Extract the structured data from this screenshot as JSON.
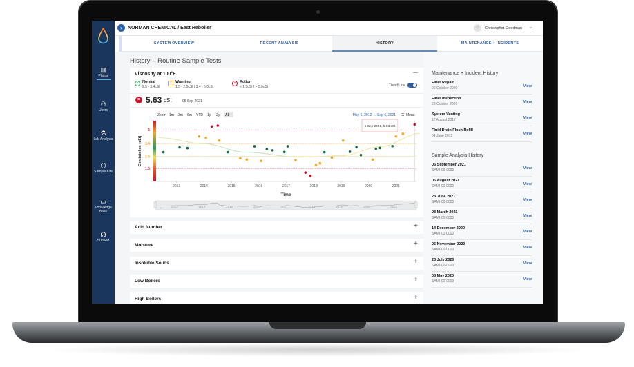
{
  "header": {
    "breadcrumb": "NORMAN CHEMICAL / East Reboiler",
    "user": "Christopher Goodman"
  },
  "sidebar": {
    "items": [
      {
        "label": "Plants",
        "icon": "building-icon"
      },
      {
        "label": "Users",
        "icon": "users-icon"
      },
      {
        "label": "Lab Analysis",
        "icon": "flask-icon"
      },
      {
        "label": "Sample Kits",
        "icon": "box-icon"
      },
      {
        "label": "Knowledge Base",
        "icon": "book-icon"
      },
      {
        "label": "Support",
        "icon": "headset-icon"
      }
    ]
  },
  "tabs": [
    {
      "label": "SYSTEM OVERVIEW"
    },
    {
      "label": "RECENT ANALYSIS"
    },
    {
      "label": "HISTORY",
      "active": true
    },
    {
      "label": "MAINTENANCE + INCIDENTS"
    }
  ],
  "page_title": "History – Routine Sample Tests",
  "card": {
    "title": "Viscosity at 100°F",
    "collapse": "—",
    "legend": [
      {
        "label": "Normal",
        "range": "2.5 - 3.4cSt",
        "color": "#1e9e5a"
      },
      {
        "label": "Warning",
        "range": "1.5 - 2.5cSt | 3.4 - 5.0cSt",
        "color": "#f5a623"
      },
      {
        "label": "Action",
        "range": "< 1.5cSt | > 5.0cSt",
        "color": "#d0102a"
      }
    ],
    "trend_label": "Trend Line",
    "trend_on": true,
    "value": "5.63",
    "unit": "cSt",
    "date": "05 Sep-2021",
    "zoom_label": "Zoom",
    "zoom_options": [
      "1m",
      "3m",
      "6m",
      "YTD",
      "1y",
      "2y",
      "All"
    ],
    "zoom_selected": "All",
    "range": "May 6, 2012 → Sep 6, 2021",
    "menu": "Menu",
    "tooltip": "5 Sep 2021, 5.63 cSt"
  },
  "chart_data": {
    "type": "scatter",
    "xlabel": "Time",
    "ylabel": "Centistokes (cSt)",
    "xticks": [
      "2013",
      "2014",
      "2015",
      "2016",
      "2017",
      "2018",
      "2019",
      "2020",
      "2021"
    ],
    "yticks": [
      {
        "v": 5,
        "label": "5",
        "color": "#e0304a"
      },
      {
        "v": 3.4,
        "label": "3.4",
        "color": "#f5a623"
      },
      {
        "v": 2.5,
        "label": "2.5",
        "color": "#f5a623"
      },
      {
        "v": 1.5,
        "label": "1.5",
        "color": "#e0304a"
      }
    ],
    "xlim": [
      2012.35,
      2021.9
    ],
    "colors": {
      "normal": "#0a6b3a",
      "warning": "#f5a623",
      "action": "#d0102a"
    },
    "points": [
      [
        2012.52,
        2.8,
        "normal"
      ],
      [
        2013.11,
        3.14,
        "normal"
      ],
      [
        2013.4,
        3.09,
        "normal"
      ],
      [
        2013.82,
        4.25,
        "warning"
      ],
      [
        2014.07,
        4.09,
        "warning"
      ],
      [
        2014.28,
        5.4,
        "action"
      ],
      [
        2014.5,
        5.5,
        "action"
      ],
      [
        2014.55,
        3.77,
        "warning"
      ],
      [
        2014.86,
        2.8,
        "normal"
      ],
      [
        2015.32,
        2.35,
        "warning"
      ],
      [
        2015.56,
        2.24,
        "warning"
      ],
      [
        2015.84,
        3.22,
        "normal"
      ],
      [
        2016.08,
        2.13,
        "warning"
      ],
      [
        2016.29,
        3.02,
        "normal"
      ],
      [
        2016.5,
        2.93,
        "normal"
      ],
      [
        2016.93,
        2.81,
        "normal"
      ],
      [
        2017.05,
        3.22,
        "normal"
      ],
      [
        2017.34,
        2.19,
        "warning"
      ],
      [
        2017.7,
        1.17,
        "action"
      ],
      [
        2017.88,
        0.9,
        "action"
      ],
      [
        2018.08,
        1.78,
        "warning"
      ],
      [
        2018.23,
        1.93,
        "warning"
      ],
      [
        2018.39,
        2.8,
        "normal"
      ],
      [
        2018.66,
        2.4,
        "warning"
      ],
      [
        2019.07,
        3.77,
        "warning"
      ],
      [
        2019.32,
        2.83,
        "normal"
      ],
      [
        2019.56,
        3.15,
        "normal"
      ],
      [
        2019.72,
        2.6,
        "normal"
      ],
      [
        2020.15,
        2.24,
        "warning"
      ],
      [
        2020.27,
        3.04,
        "normal"
      ],
      [
        2020.42,
        3.1,
        "normal"
      ],
      [
        2020.87,
        3.23,
        "normal"
      ],
      [
        2021.0,
        4.25,
        "warning"
      ],
      [
        2021.25,
        4.55,
        "warning"
      ],
      [
        2021.68,
        5.63,
        "action"
      ]
    ],
    "trend": [
      [
        2012.35,
        4.1
      ],
      [
        2014,
        3.4
      ],
      [
        2015.5,
        2.8
      ],
      [
        2017.5,
        2.45
      ],
      [
        2019,
        2.55
      ],
      [
        2020.5,
        3.2
      ],
      [
        2021.9,
        4.6
      ]
    ]
  },
  "sections": [
    "Acid Number",
    "Moisture",
    "Insoluble Solids",
    "Low Boilers",
    "High Boilers"
  ],
  "maintenance": {
    "title": "Maintenance + Incident History",
    "items": [
      {
        "title": "Filter Repair",
        "date": "29 October 2020"
      },
      {
        "title": "Filter Inspection",
        "date": "28 October 2020"
      },
      {
        "title": "System Venting",
        "date": "17 August 2017"
      },
      {
        "title": "Fluid Drain Flush Refill",
        "date": "04 June 2013"
      }
    ]
  },
  "samples": {
    "title": "Sample Analysis History",
    "items": [
      {
        "date": "05 September 2021",
        "id": "SAMI-00-0000"
      },
      {
        "date": "06 August 2021",
        "id": "SAMI-00-0000"
      },
      {
        "date": "23 June 2021",
        "id": "SAMI-00-0000"
      },
      {
        "date": "08 March 2021",
        "id": "SAMI-00-0000"
      },
      {
        "date": "14 December 2020",
        "id": "SAMI-00-0000"
      },
      {
        "date": "06 November 2020",
        "id": "SAMI-00-0000"
      },
      {
        "date": "23 July 2020",
        "id": "SAMI-00-0000"
      },
      {
        "date": "08 May 2020",
        "id": "SAMI-00-0000"
      }
    ]
  },
  "view_label": "View"
}
